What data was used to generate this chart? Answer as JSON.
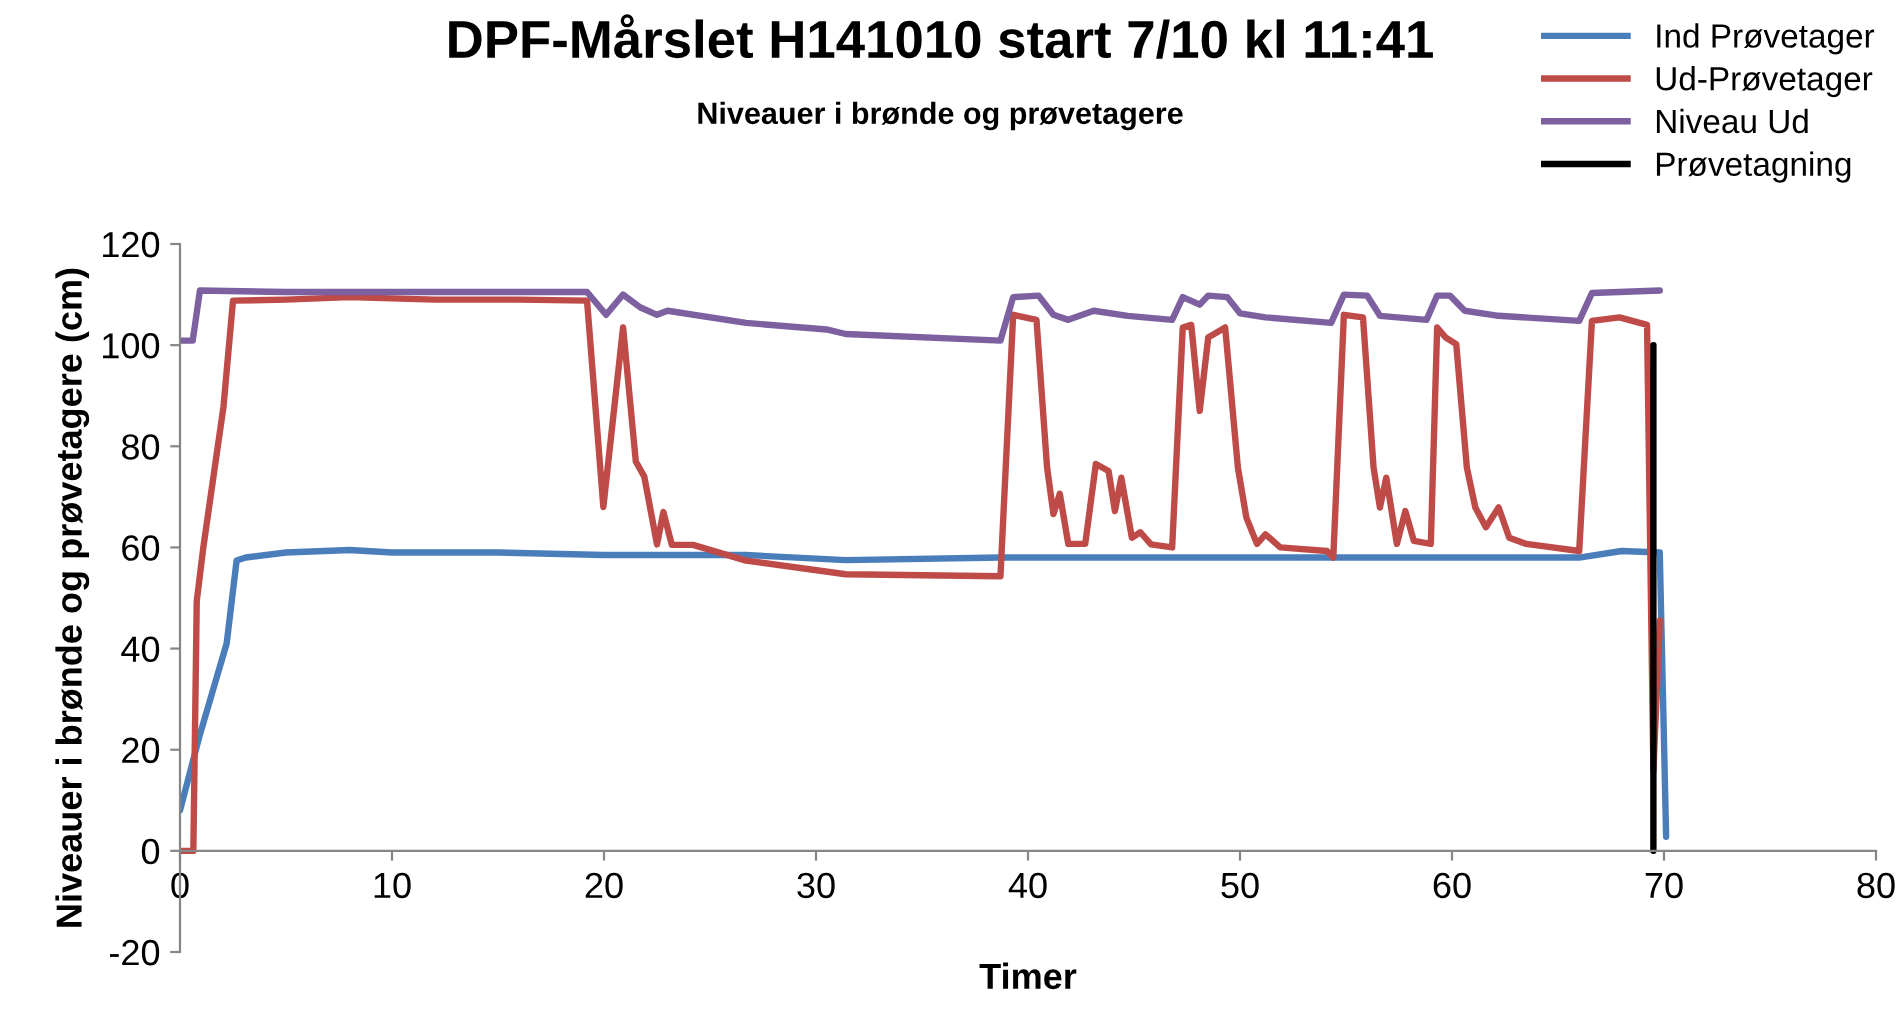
{
  "chart_data": {
    "type": "line",
    "title": "DPF-Mårslet H141010 start 7/10 kl 11:41",
    "subtitle": "Niveauer i brønde og prøvetagere",
    "xlabel": "Timer",
    "ylabel": "Niveauer i brønde og prøvetagere (cm)",
    "xlim": [
      0,
      80
    ],
    "xticks": [
      0,
      10,
      20,
      30,
      40,
      50,
      60,
      70,
      80
    ],
    "ylim": [
      -20,
      120
    ],
    "yticks": [
      -20,
      0,
      20,
      40,
      60,
      80,
      100,
      120
    ],
    "grid": false,
    "legend": "top right",
    "marker": "none",
    "line_style": "solid",
    "series": [
      {
        "name": "Ind Prøvetager",
        "color": "#4a7ebb",
        "x": [
          0,
          0.94,
          2.2,
          2.67,
          3.1,
          5,
          8,
          10,
          15,
          20,
          26.7,
          31.4,
          38.7,
          45,
          52,
          60,
          66,
          68,
          69.8,
          70.1
        ],
        "values": [
          8,
          23,
          41,
          57.4,
          58,
          59,
          59.5,
          59,
          59,
          58.5,
          58.5,
          57.5,
          58,
          58,
          58,
          58,
          58,
          59.3,
          59,
          2.8
        ]
      },
      {
        "name": "Ud-Prøvetager",
        "color": "#be4b48",
        "x": [
          0,
          0.63,
          0.79,
          1.1,
          2.05,
          2.5,
          5,
          8,
          12,
          16,
          19.2,
          19.97,
          20.9,
          21.5,
          21.9,
          22.5,
          22.8,
          23.2,
          24.2,
          26.7,
          31.4,
          38.7,
          39.3,
          40.4,
          40.9,
          41.2,
          41.5,
          41.9,
          42.7,
          43.2,
          43.8,
          44.1,
          44.4,
          44.9,
          45.3,
          45.8,
          46.8,
          47.3,
          47.7,
          48.1,
          48.5,
          49.3,
          49.9,
          50.3,
          50.8,
          51.2,
          51.9,
          54.1,
          54.4,
          54.9,
          55.8,
          56.3,
          56.6,
          56.9,
          57.4,
          57.8,
          58.2,
          59.0,
          59.3,
          59.7,
          60.2,
          60.7,
          61.1,
          61.6,
          62.2,
          62.7,
          63.5,
          66.0,
          66.6,
          67.9,
          69.2,
          69.5,
          69.8
        ],
        "values": [
          0,
          0,
          49.4,
          60,
          87.8,
          108.8,
          109,
          109.5,
          109,
          109,
          108.8,
          68,
          103.5,
          77,
          74,
          60.6,
          67,
          60.5,
          60.5,
          57.4,
          54.7,
          54.3,
          106,
          105,
          75.8,
          66.6,
          70.6,
          60.7,
          60.7,
          76.5,
          75.1,
          67.2,
          73.8,
          61.9,
          63,
          60.6,
          60,
          103.5,
          104,
          87,
          101.5,
          103.5,
          75.8,
          65.9,
          60.7,
          62.6,
          60,
          59.3,
          58,
          106,
          105.5,
          75.8,
          67.9,
          73.8,
          60.7,
          67.2,
          61.3,
          60.7,
          103.5,
          101.5,
          100.2,
          75.8,
          67.9,
          64,
          67.9,
          61.9,
          60.7,
          59.3,
          104.8,
          105.5,
          104,
          15.8,
          45.5
        ]
      },
      {
        "name": "Niveau Ud",
        "color": "#7d60a0",
        "x": [
          0,
          0.6,
          0.94,
          5,
          10,
          19.2,
          20.1,
          20.9,
          21.7,
          22.5,
          23,
          26.7,
          30.5,
          31.4,
          38.7,
          39.3,
          40.5,
          41.2,
          41.9,
          43.1,
          44.7,
          46.8,
          47.3,
          48.1,
          48.5,
          49.4,
          50.0,
          51.2,
          54.3,
          54.9,
          56.0,
          56.6,
          58.8,
          59.3,
          59.9,
          60.6,
          62.2,
          66.0,
          66.6,
          69.8
        ],
        "values": [
          100.9,
          100.9,
          110.8,
          110.5,
          110.5,
          110.5,
          106,
          110,
          107.5,
          106,
          106.8,
          104.4,
          103.1,
          102.2,
          100.9,
          109.5,
          109.8,
          106,
          105,
          106.8,
          105.8,
          105,
          109.5,
          108,
          109.8,
          109.5,
          106.3,
          105.5,
          104.4,
          110,
          109.8,
          105.8,
          105,
          109.8,
          109.8,
          106.8,
          105.8,
          104.8,
          110.3,
          110.8
        ]
      },
      {
        "name": "Prøvetagning",
        "color": "#000000",
        "x": [
          69.5,
          69.5
        ],
        "values": [
          100,
          0
        ]
      }
    ]
  }
}
